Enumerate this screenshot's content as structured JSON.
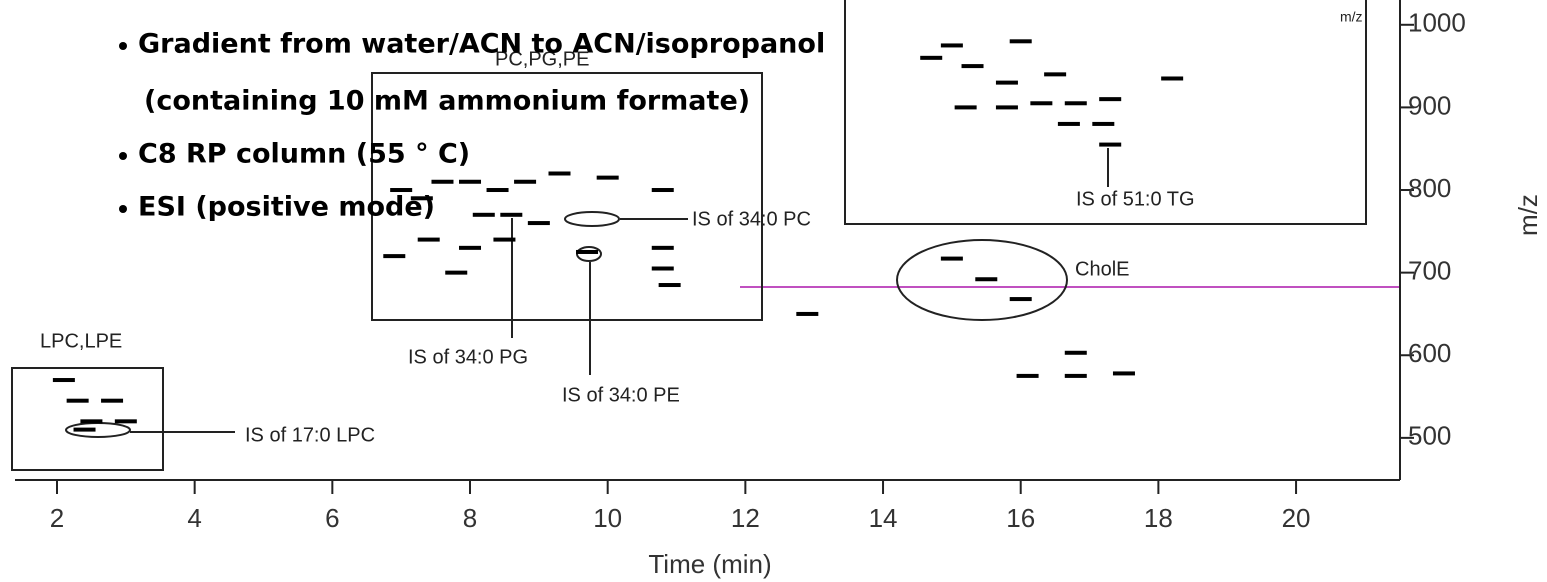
{
  "chart_data": {
    "type": "scatter",
    "xlabel": "Time (min)",
    "ylabel": "m/z",
    "xlim": [
      1.39,
      21.51
    ],
    "ylim": [
      449,
      1030
    ],
    "xticks": [
      2,
      4,
      6,
      8,
      10,
      12,
      14,
      16,
      18,
      20
    ],
    "yticks": [
      500,
      600,
      700,
      800,
      900,
      1000
    ],
    "notes": [
      "Gradient from water/ACN to ACN/isopropanol",
      "(containing 10 mM ammonium formate)",
      "C8 RP column (55 ° C)",
      "ESI (positive mode)"
    ],
    "annotations": [
      "LPC,LPE",
      "IS of 17:0 LPC",
      "PC,PG,PE",
      "IS of 34:0 PG",
      "IS of 34:0 PE",
      "IS of 34:0 PC",
      "CholE",
      "IS of 51:0 TG",
      "m/z"
    ],
    "series": [
      {
        "color": "#000000",
        "x": [
          2.1,
          2.3,
          2.8,
          2.5,
          3.0,
          2.4,
          7.0,
          7.3,
          7.6,
          8.0,
          8.4,
          8.8,
          9.3,
          10.0,
          10.8,
          8.2,
          8.6,
          9.0,
          7.4,
          8.0,
          8.5,
          10.8,
          10.8,
          6.9,
          7.8,
          10.9,
          9.7,
          14.7,
          15.3,
          15.8,
          16.3,
          16.8,
          17.3,
          15.2,
          15.8,
          16.7,
          17.2,
          17.3,
          18.2,
          16.5,
          15.0,
          16.0,
          15.5,
          16.0,
          15.0,
          12.9,
          16.8,
          16.1,
          16.8,
          17.5
        ],
        "values": [
          570,
          545,
          545,
          520,
          520,
          510,
          800,
          790,
          810,
          810,
          800,
          810,
          820,
          815,
          800,
          770,
          770,
          760,
          740,
          730,
          740,
          730,
          705,
          720,
          700,
          685,
          725,
          960,
          950,
          930,
          905,
          905,
          910,
          900,
          900,
          880,
          880,
          855,
          935,
          940,
          975,
          980,
          692,
          668,
          717,
          650,
          575,
          575,
          603,
          578
        ]
      }
    ]
  }
}
